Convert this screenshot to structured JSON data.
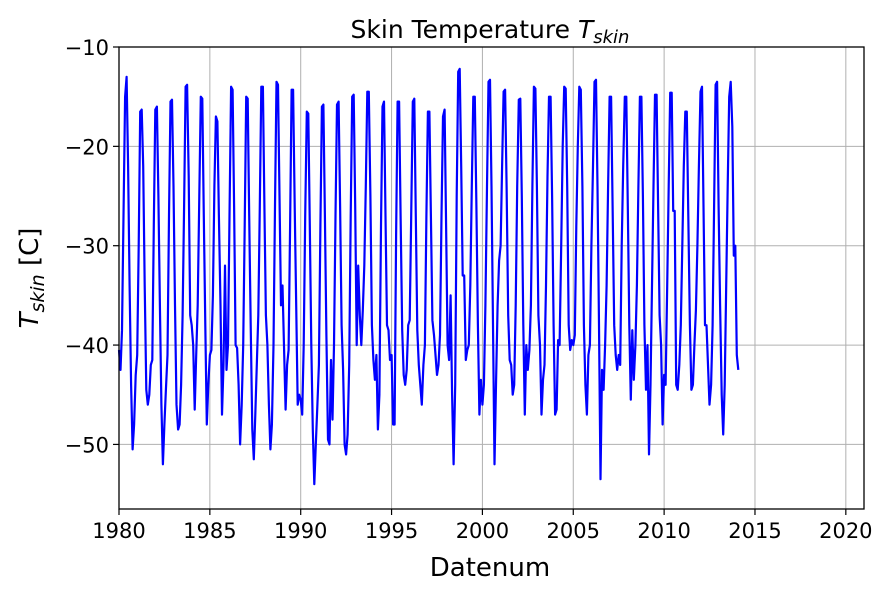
{
  "chart_data": {
    "type": "line",
    "title": "Skin Temperature",
    "title_symbol": "T",
    "title_subscript": "skin",
    "xlabel": "Datenum",
    "ylabel_symbol": "T",
    "ylabel_subscript": "skin",
    "ylabel_unit": "[C]",
    "xlim": [
      1980,
      2021
    ],
    "ylim": [
      -56.5,
      -10
    ],
    "grid": true,
    "legend": "none",
    "line_color": "#0000ff",
    "x_ticks": [
      1980,
      1985,
      1990,
      1995,
      2000,
      2005,
      2010,
      2015,
      2020
    ],
    "x_tick_labels": [
      "1980",
      "1985",
      "1990",
      "1995",
      "2000",
      "2005",
      "2010",
      "2015",
      "2020"
    ],
    "y_ticks": [
      -10,
      -20,
      -30,
      -40,
      -50
    ],
    "y_tick_labels": [
      "−10",
      "−20",
      "−30",
      "−40",
      "−50"
    ],
    "series": [
      {
        "name": "T_skin",
        "start_year": 1980,
        "step_years": 0.0833333,
        "values": [
          -40.5,
          -42.5,
          -38.5,
          -27.0,
          -15.0,
          -13.0,
          -22.0,
          -34.0,
          -44.0,
          -50.5,
          -48.0,
          -43.0,
          -41.0,
          -30.0,
          -16.5,
          -16.3,
          -22.0,
          -34.0,
          -44.5,
          -46.0,
          -45.0,
          -42.0,
          -41.5,
          -28.0,
          -16.3,
          -16.0,
          -25.0,
          -36.0,
          -46.0,
          -52.0,
          -48.0,
          -44.5,
          -41.0,
          -27.0,
          -15.5,
          -15.3,
          -24.0,
          -36.0,
          -46.0,
          -48.5,
          -48.0,
          -44.0,
          -37.0,
          -26.0,
          -14.0,
          -13.8,
          -23.0,
          -37.0,
          -38.0,
          -40.0,
          -46.5,
          -41.0,
          -36.0,
          -25.0,
          -15.0,
          -15.2,
          -27.0,
          -38.0,
          -48.0,
          -44.0,
          -41.0,
          -40.5,
          -35.0,
          -24.0,
          -17.0,
          -17.5,
          -27.0,
          -36.0,
          -47.0,
          -42.0,
          -32.0,
          -42.5,
          -40.0,
          -27.0,
          -14.0,
          -14.3,
          -26.0,
          -40.0,
          -40.3,
          -44.0,
          -50.0,
          -46.0,
          -40.0,
          -28.0,
          -15.0,
          -15.2,
          -27.0,
          -38.0,
          -48.5,
          -51.5,
          -47.0,
          -42.0,
          -37.0,
          -26.0,
          -14.0,
          -14.0,
          -26.0,
          -37.0,
          -40.0,
          -46.0,
          -50.5,
          -48.0,
          -40.0,
          -26.0,
          -13.5,
          -13.8,
          -25.0,
          -36.0,
          -34.0,
          -40.5,
          -46.5,
          -42.0,
          -40.5,
          -28.0,
          -14.3,
          -14.3,
          -26.0,
          -36.0,
          -46.0,
          -45.0,
          -45.5,
          -47.0,
          -40.0,
          -27.0,
          -16.5,
          -16.7,
          -28.0,
          -40.0,
          -48.5,
          -54.0,
          -50.0,
          -46.0,
          -42.0,
          -28.0,
          -16.0,
          -15.8,
          -27.0,
          -39.0,
          -49.5,
          -50.0,
          -41.5,
          -47.5,
          -40.0,
          -27.0,
          -15.8,
          -15.5,
          -26.0,
          -38.0,
          -42.5,
          -50.0,
          -51.0,
          -49.0,
          -42.0,
          -27.0,
          -15.0,
          -14.8,
          -26.0,
          -40.0,
          -32.0,
          -37.0,
          -40.0,
          -36.5,
          -32.0,
          -24.0,
          -14.5,
          -14.5,
          -25.0,
          -38.0,
          -41.5,
          -43.5,
          -41.0,
          -48.5,
          -45.0,
          -28.0,
          -16.0,
          -15.5,
          -27.0,
          -38.0,
          -38.5,
          -41.5,
          -41.0,
          -48.0,
          -48.0,
          -29.0,
          -15.5,
          -15.5,
          -27.0,
          -38.5,
          -43.0,
          -44.0,
          -42.5,
          -38.0,
          -37.5,
          -27.0,
          -15.5,
          -15.2,
          -27.0,
          -38.5,
          -42.0,
          -44.0,
          -46.0,
          -42.0,
          -40.0,
          -27.0,
          -16.5,
          -16.5,
          -27.0,
          -37.5,
          -39.0,
          -41.0,
          -43.0,
          -42.0,
          -39.0,
          -27.0,
          -17.0,
          -16.3,
          -28.0,
          -40.0,
          -41.5,
          -35.0,
          -45.0,
          -52.0,
          -44.0,
          -25.0,
          -12.5,
          -12.2,
          -22.0,
          -33.0,
          -33.0,
          -41.5,
          -40.5,
          -40.0,
          -34.0,
          -24.0,
          -15.0,
          -15.0,
          -26.0,
          -38.0,
          -47.0,
          -43.5,
          -46.0,
          -44.0,
          -36.0,
          -24.0,
          -13.5,
          -13.3,
          -24.0,
          -38.0,
          -52.0,
          -44.0,
          -36.0,
          -31.5,
          -30.0,
          -22.0,
          -14.5,
          -14.3,
          -24.0,
          -37.0,
          -41.5,
          -42.0,
          -45.0,
          -44.0,
          -36.0,
          -24.0,
          -15.3,
          -15.2,
          -25.0,
          -38.0,
          -47.0,
          -40.0,
          -42.5,
          -40.5,
          -36.0,
          -24.0,
          -14.0,
          -14.2,
          -24.0,
          -37.0,
          -40.0,
          -47.0,
          -43.5,
          -42.0,
          -34.0,
          -23.0,
          -15.0,
          -15.0,
          -25.0,
          -38.0,
          -47.0,
          -46.5,
          -39.5,
          -40.0,
          -30.0,
          -20.0,
          -14.0,
          -14.2,
          -24.0,
          -38.0,
          -40.5,
          -39.5,
          -40.0,
          -39.0,
          -28.0,
          -20.0,
          -14.0,
          -14.3,
          -24.0,
          -38.0,
          -44.0,
          -47.0,
          -41.0,
          -40.0,
          -30.0,
          -22.0,
          -13.5,
          -13.3,
          -24.0,
          -38.0,
          -53.5,
          -42.5,
          -44.5,
          -40.0,
          -34.0,
          -24.0,
          -15.0,
          -15.0,
          -26.0,
          -38.0,
          -41.0,
          -42.5,
          -41.0,
          -42.0,
          -30.0,
          -22.0,
          -15.0,
          -15.0,
          -26.0,
          -38.0,
          -45.5,
          -38.5,
          -43.5,
          -40.0,
          -34.0,
          -24.0,
          -15.0,
          -15.0,
          -25.0,
          -38.0,
          -44.5,
          -40.0,
          -51.0,
          -44.0,
          -34.0,
          -24.0,
          -14.8,
          -14.8,
          -26.0,
          -37.0,
          -40.0,
          -48.0,
          -43.0,
          -44.0,
          -34.0,
          -24.0,
          -14.6,
          -14.6,
          -26.5,
          -26.5,
          -44.0,
          -44.5,
          -42.0,
          -38.0,
          -30.0,
          -22.0,
          -16.5,
          -16.5,
          -27.0,
          -38.0,
          -44.5,
          -44.0,
          -40.0,
          -36.5,
          -30.0,
          -22.0,
          -14.5,
          -14.0,
          -26.0,
          -38.0,
          -38.0,
          -42.0,
          -46.0,
          -44.0,
          -38.0,
          -26.0,
          -13.8,
          -13.5,
          -26.0,
          -36.0,
          -45.0,
          -49.0,
          -44.0,
          -34.0,
          -24.0,
          -15.0,
          -13.5,
          -18.0,
          -31.0,
          -30.0,
          -41.0,
          -42.5
        ]
      }
    ]
  }
}
